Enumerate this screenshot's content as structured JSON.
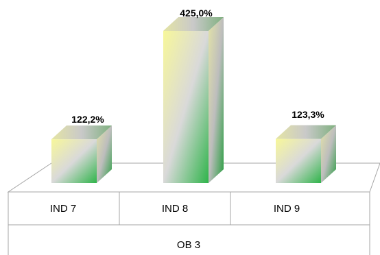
{
  "chart_data": {
    "type": "bar",
    "style": "3d-column",
    "categories": [
      "IND 7",
      "IND 8",
      "IND 9"
    ],
    "group_label": "OB 3",
    "values": [
      122.2,
      425.0,
      123.3
    ],
    "value_labels": [
      "122,2%",
      "425,0%",
      "123,3%"
    ],
    "unit": "%",
    "ylim": [
      0,
      425
    ],
    "grid": false,
    "legend": "none",
    "bar_gradient": {
      "light": "#f7f79a",
      "mid": "#d9d9d9",
      "dark": "#2fb44a"
    },
    "line_color": "#a6a6a6"
  }
}
